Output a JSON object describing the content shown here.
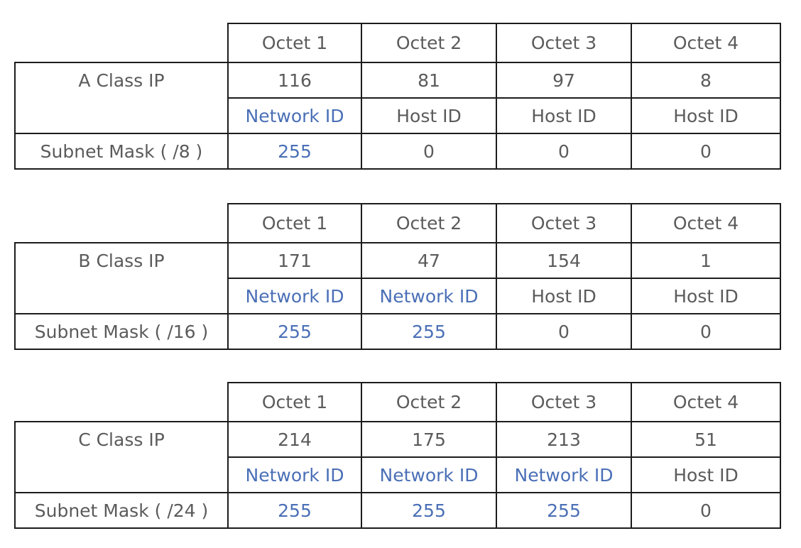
{
  "tables": [
    {
      "headers": [
        "Octet 1",
        "Octet 2",
        "Octet 3",
        "Octet 4"
      ],
      "class_label": "A Class IP",
      "octets": [
        "116",
        "81",
        "97",
        "8"
      ],
      "roles": [
        "Network ID",
        "Host ID",
        "Host ID",
        "Host ID"
      ],
      "mask_label": "Subnet Mask ( /8 )",
      "mask": [
        "255",
        "0",
        "0",
        "0"
      ]
    },
    {
      "headers": [
        "Octet 1",
        "Octet 2",
        "Octet 3",
        "Octet 4"
      ],
      "class_label": "B Class IP",
      "octets": [
        "171",
        "47",
        "154",
        "1"
      ],
      "roles": [
        "Network ID",
        "Network ID",
        "Host ID",
        "Host ID"
      ],
      "mask_label": "Subnet Mask ( /16 )",
      "mask": [
        "255",
        "255",
        "0",
        "0"
      ]
    },
    {
      "headers": [
        "Octet 1",
        "Octet 2",
        "Octet 3",
        "Octet 4"
      ],
      "class_label": "C Class IP",
      "octets": [
        "214",
        "175",
        "213",
        "51"
      ],
      "roles": [
        "Network ID",
        "Network ID",
        "Network ID",
        "Host ID"
      ],
      "mask_label": "Subnet Mask ( /24 )",
      "mask": [
        "255",
        "255",
        "255",
        "0"
      ]
    }
  ],
  "colors": {
    "network": "#4a6fb6",
    "text": "#5b5b5b",
    "border": "#1c1c1c"
  }
}
